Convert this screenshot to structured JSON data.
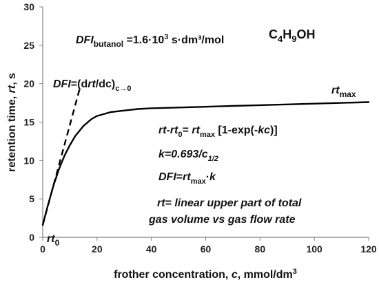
{
  "chart_data": {
    "type": "line",
    "xlabel": {
      "main": "frother concentration, ",
      "var": "c",
      "unit": ", mmol/dm",
      "unit_sup": "3"
    },
    "ylabel": {
      "main": "retention time, ",
      "var": "rt",
      "unit": ", s"
    },
    "xlim": [
      0,
      120
    ],
    "ylim": [
      0,
      30
    ],
    "x_ticks": [
      "0",
      "20",
      "40",
      "60",
      "80",
      "100",
      "120"
    ],
    "y_ticks": [
      "0",
      "5",
      "10",
      "15",
      "20",
      "25",
      "30"
    ],
    "grid": false,
    "legend": "none",
    "series": [
      {
        "style": "solid",
        "color": "#000000",
        "x": [
          0,
          2,
          4,
          6,
          8,
          10,
          12,
          15,
          18,
          20,
          25,
          30,
          35,
          40,
          50,
          60,
          70,
          80,
          90,
          100,
          110,
          120
        ],
        "y": [
          1.6,
          4.3,
          6.8,
          8.9,
          10.6,
          12.0,
          13.2,
          14.5,
          15.4,
          15.8,
          16.3,
          16.5,
          16.7,
          16.8,
          16.9,
          17.0,
          17.1,
          17.2,
          17.3,
          17.4,
          17.5,
          17.6
        ]
      },
      {
        "style": "dashed",
        "color": "#000000",
        "x": [
          0,
          13.5
        ],
        "y": [
          1.6,
          19.2
        ]
      }
    ],
    "annotations": {
      "dfi_value": {
        "label": "DFI",
        "sub": "butanol",
        "text": " =1.6·10",
        "sup": "3",
        "tail": " s·dm³/mol"
      },
      "formula": {
        "p1": "C",
        "s1": "4",
        "p2": "H",
        "s2": "9",
        "p3": "OH"
      },
      "dfi_slope": {
        "label": "DFI",
        "text": "=(d",
        "var": "rt",
        "text2": "/dc)",
        "sub": "c→0"
      },
      "rt_max": {
        "var": "rt",
        "sub": "max"
      },
      "rt_0": {
        "var": "rt",
        "sub": "0"
      },
      "eq1": {
        "a": "rt",
        "b": "-",
        "c": "rt",
        "c_sub": "0",
        "d": "= ",
        "e": "rt",
        "e_sub": "max",
        "f": " [1-exp(-",
        "g": "kc",
        "h": ")]"
      },
      "eq2": {
        "a": "k=0.693/c",
        "sub": "1/2"
      },
      "eq3": {
        "a": "DFI",
        "b": "=",
        "c": "rt",
        "c_sub": "max",
        "d": "·",
        "e": "k"
      },
      "eq4": {
        "line1": "rt= linear upper part of total",
        "line2": "gas volume vs gas flow rate"
      }
    }
  }
}
